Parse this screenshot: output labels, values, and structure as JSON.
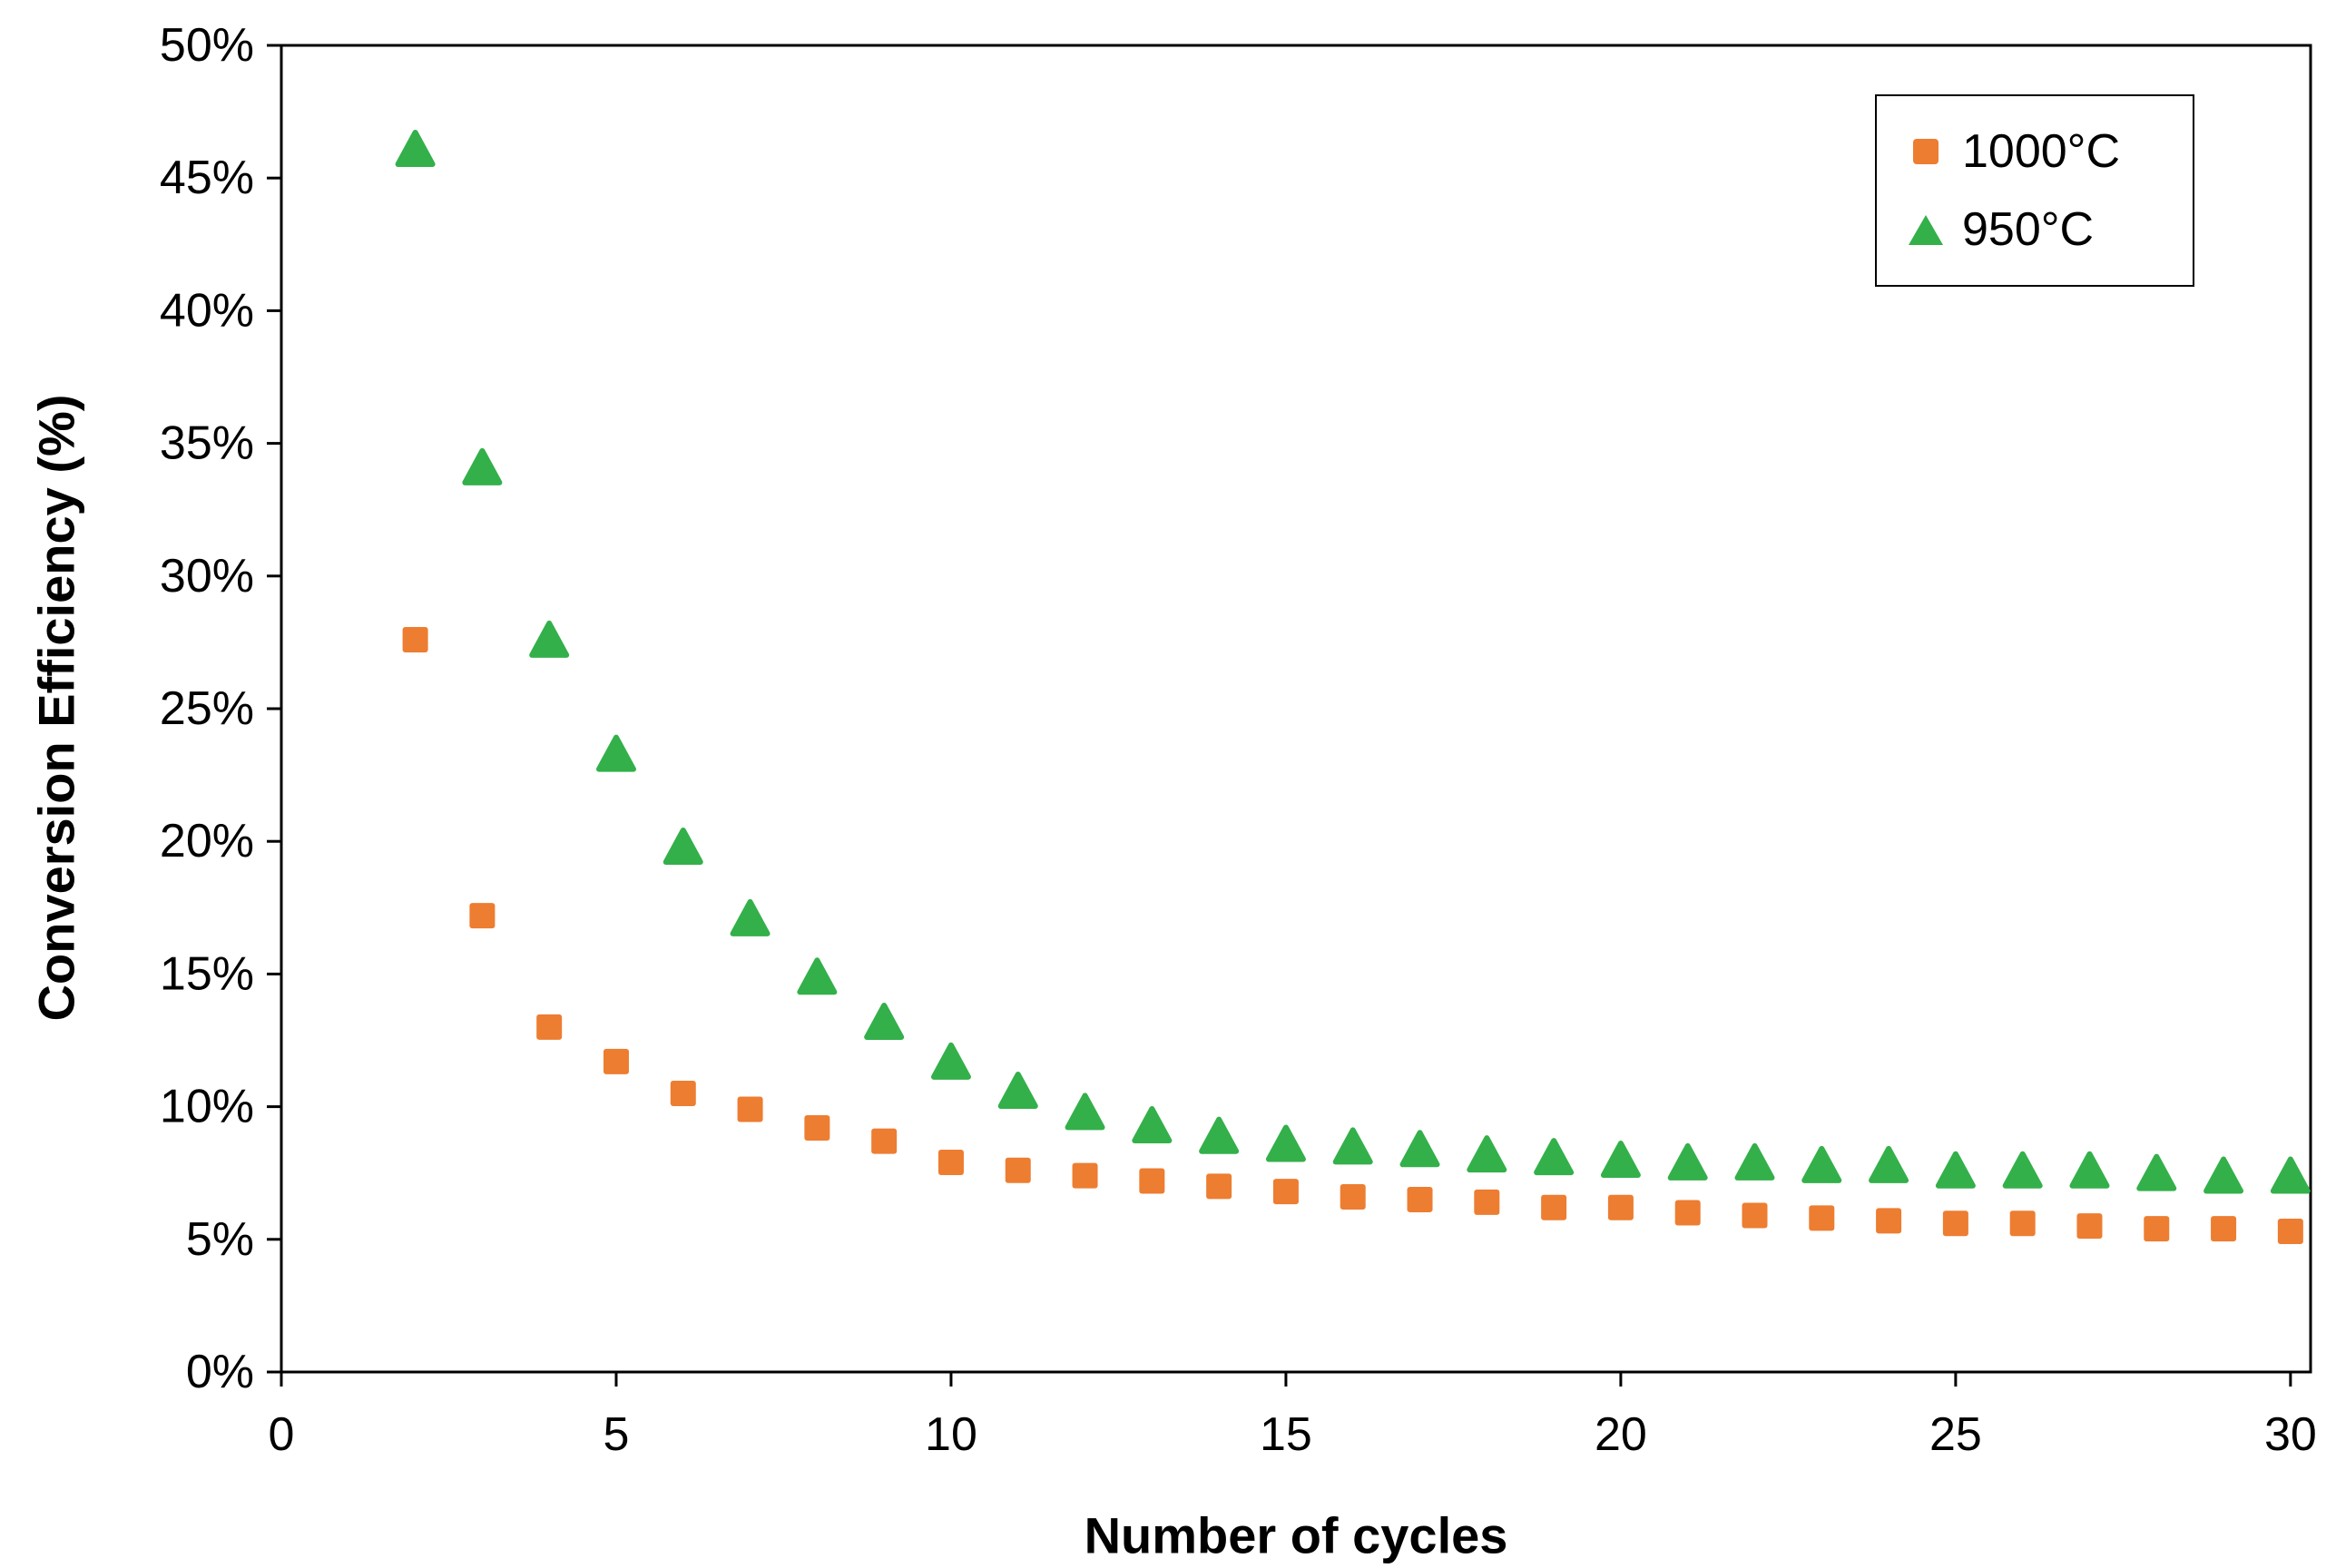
{
  "chart_data": {
    "type": "scatter",
    "title": "",
    "xlabel": "Number of cycles",
    "ylabel": "Conversion Efficiency (%)",
    "xlim": [
      0,
      30
    ],
    "ylim": [
      0,
      50
    ],
    "grid": false,
    "legend_position": "top-right",
    "x_ticks": [
      0,
      5,
      10,
      15,
      20,
      25,
      30
    ],
    "x_tick_labels": [
      "0",
      "5",
      "10",
      "15",
      "20",
      "25",
      "30"
    ],
    "y_ticks": [
      0,
      5,
      10,
      15,
      20,
      25,
      30,
      35,
      40,
      45,
      50
    ],
    "y_tick_labels": [
      "0%",
      "5%",
      "10%",
      "15%",
      "20%",
      "25%",
      "30%",
      "35%",
      "40%",
      "45%",
      "50%"
    ],
    "x": [
      2,
      3,
      4,
      5,
      6,
      7,
      8,
      9,
      10,
      11,
      12,
      13,
      14,
      15,
      16,
      17,
      18,
      19,
      20,
      21,
      22,
      23,
      24,
      25,
      26,
      27,
      28,
      29,
      30
    ],
    "series": [
      {
        "name": "1000°C",
        "marker": "square",
        "color": "#ED7D31",
        "values": [
          27.6,
          17.2,
          13.0,
          11.7,
          10.5,
          9.9,
          9.2,
          8.7,
          7.9,
          7.6,
          7.4,
          7.2,
          7.0,
          6.8,
          6.6,
          6.5,
          6.4,
          6.2,
          6.2,
          6.0,
          5.9,
          5.8,
          5.7,
          5.6,
          5.6,
          5.5,
          5.4,
          5.4,
          5.3
        ]
      },
      {
        "name": "950°C",
        "marker": "triangle",
        "color": "#33B04A",
        "values": [
          46.0,
          34.0,
          27.5,
          23.2,
          19.7,
          17.0,
          14.8,
          13.1,
          11.6,
          10.5,
          9.7,
          9.2,
          8.8,
          8.5,
          8.4,
          8.3,
          8.1,
          8.0,
          7.9,
          7.8,
          7.8,
          7.7,
          7.7,
          7.5,
          7.5,
          7.5,
          7.4,
          7.3,
          7.3
        ]
      }
    ]
  }
}
